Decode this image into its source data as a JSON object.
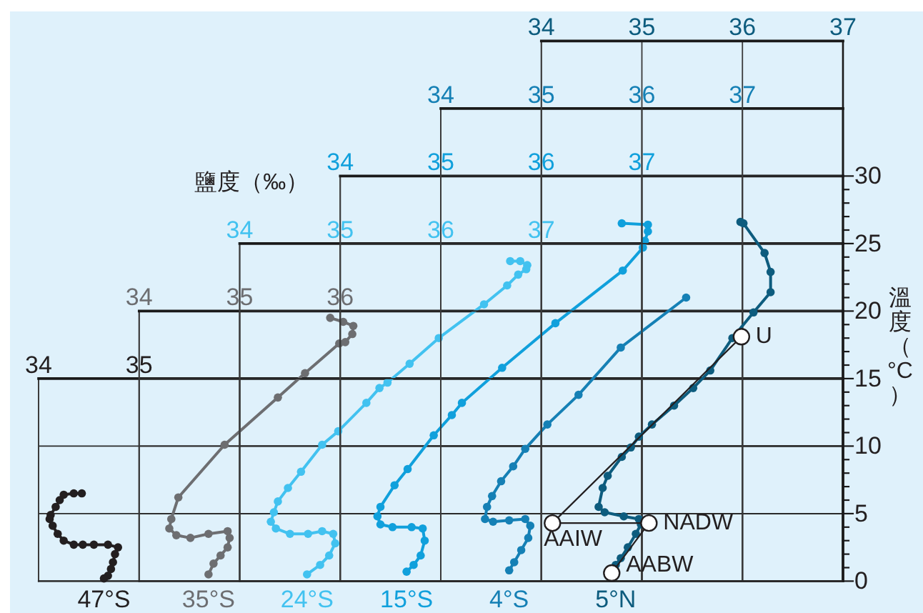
{
  "chart_data": [
    {
      "type": "line",
      "xlim": [
        34,
        42
      ],
      "xticks": [
        34,
        35,
        {
          "value": 36,
          "label": null
        },
        {
          "value": 37,
          "label": null
        },
        {
          "value": 39,
          "label": null
        },
        {
          "value": 40,
          "label": null
        },
        {
          "value": 41,
          "label": null
        }
      ],
      "ylim": [
        0,
        15
      ],
      "yticks": [
        0,
        5,
        10,
        15
      ],
      "tick_labels": "x",
      "grid": true,
      "marker": "circle",
      "series": [
        {
          "name": "47°S",
          "color": "#231f20",
          "x": [
            34.43,
            34.35,
            34.25,
            34.21,
            34.17,
            34.12,
            34.11,
            34.14,
            34.19,
            34.25,
            34.35,
            34.44,
            34.55,
            34.69,
            34.79,
            34.76,
            34.74,
            34.72,
            34.69,
            34.65
          ],
          "values": [
            6.5,
            6.5,
            6.4,
            6.0,
            5.5,
            4.9,
            4.6,
            4.1,
            3.5,
            3.0,
            2.7,
            2.7,
            2.7,
            2.7,
            2.5,
            2.0,
            1.4,
            0.9,
            0.4,
            0.2
          ]
        }
      ]
    },
    {
      "type": "line",
      "xlim": [
        34,
        41
      ],
      "xticks": [
        34,
        35,
        36,
        {
          "value": 38,
          "label": null
        },
        {
          "value": 39,
          "label": null
        },
        {
          "value": 40,
          "label": null
        }
      ],
      "ylim": [
        0,
        20
      ],
      "yticks": [
        0,
        5,
        10,
        15,
        20
      ],
      "tick_labels": "x",
      "grid": true,
      "marker": "circle",
      "series": [
        {
          "name": "35°S",
          "color": "#6d6e71",
          "x": [
            35.9,
            36.03,
            36.13,
            36.12,
            36.05,
            35.99,
            35.65,
            35.38,
            34.85,
            34.39,
            34.32,
            34.3,
            34.37,
            34.51,
            34.69,
            34.88,
            34.9,
            34.88,
            34.81,
            34.74,
            34.69
          ],
          "values": [
            19.5,
            19.2,
            18.9,
            18.3,
            17.7,
            17.6,
            15.4,
            13.6,
            10.1,
            6.2,
            4.6,
            3.9,
            3.4,
            3.2,
            3.5,
            3.7,
            3.2,
            2.5,
            1.9,
            1.3,
            0.5
          ]
        }
      ]
    },
    {
      "type": "line",
      "xlim": [
        34,
        40
      ],
      "xticks": [
        34,
        35,
        36,
        37,
        {
          "value": 38,
          "label": null
        },
        {
          "value": 39,
          "label": null
        }
      ],
      "ylim": [
        0,
        25
      ],
      "yticks": [
        0,
        5,
        10,
        15,
        20,
        25
      ],
      "tick_labels": "x",
      "grid": true,
      "marker": "circle",
      "series": [
        {
          "name": "24°S",
          "color": "#42c2f0",
          "x": [
            36.69,
            36.79,
            36.86,
            36.85,
            36.77,
            36.66,
            36.43,
            35.98,
            35.69,
            35.47,
            35.39,
            35.26,
            34.98,
            34.82,
            34.61,
            34.48,
            34.38,
            34.34,
            34.31,
            34.36,
            34.5,
            34.68,
            34.82,
            34.93,
            34.95,
            34.89,
            34.8,
            34.67
          ],
          "values": [
            23.7,
            23.7,
            23.4,
            23.1,
            22.7,
            21.9,
            20.5,
            18.0,
            16.1,
            14.7,
            14.3,
            13.2,
            11.1,
            10.1,
            8.1,
            6.9,
            5.9,
            5.1,
            4.4,
            3.9,
            3.5,
            3.5,
            3.7,
            3.5,
            2.8,
            1.9,
            1.2,
            0.5
          ]
        }
      ]
    },
    {
      "type": "line",
      "xlabel": "鹽度（‰）",
      "xlim": [
        34,
        39
      ],
      "xticks": [
        34,
        35,
        36,
        37,
        {
          "value": 38,
          "label": null
        }
      ],
      "ylim": [
        0,
        30
      ],
      "yticks": [
        0,
        5,
        10,
        15,
        20,
        25,
        30
      ],
      "tick_labels": "x",
      "grid": true,
      "marker": "circle",
      "series": [
        {
          "name": "15°S",
          "color": "#10a0dc",
          "x": [
            36.8,
            37.06,
            37.06,
            37.03,
            37.01,
            36.81,
            36.14,
            35.61,
            35.21,
            35.11,
            34.93,
            34.67,
            34.54,
            34.4,
            34.37,
            34.4,
            34.52,
            34.71,
            34.82,
            34.84,
            34.8,
            34.73,
            34.66
          ],
          "values": [
            26.5,
            26.4,
            25.9,
            25.2,
            24.7,
            23.0,
            19.1,
            15.8,
            13.2,
            12.3,
            10.8,
            8.3,
            7.1,
            5.5,
            4.8,
            4.2,
            4.0,
            4.0,
            3.9,
            3.0,
            1.9,
            1.2,
            0.7
          ]
        }
      ]
    },
    {
      "type": "line",
      "xlim": [
        34,
        38
      ],
      "xticks": [
        34,
        35,
        36,
        37
      ],
      "ylim": [
        0,
        35
      ],
      "yticks": [
        0,
        5,
        10,
        15,
        20,
        25,
        30
      ],
      "tick_labels": "x",
      "grid": true,
      "marker": "circle",
      "series": [
        {
          "name": "4°S",
          "color": "#1580b5",
          "x": [
            36.44,
            35.79,
            35.37,
            35.06,
            34.84,
            34.72,
            34.6,
            34.51,
            34.46,
            34.44,
            34.52,
            34.68,
            34.84,
            34.89,
            34.87,
            34.8,
            34.73,
            34.68
          ],
          "values": [
            21.0,
            17.3,
            13.8,
            11.6,
            9.8,
            8.5,
            7.4,
            6.3,
            5.5,
            4.6,
            4.4,
            4.5,
            4.6,
            4.1,
            3.2,
            2.3,
            1.4,
            0.8
          ]
        }
      ]
    },
    {
      "type": "line",
      "ylabel": "溫度（°C）",
      "xlim": [
        34,
        37
      ],
      "xticks": [
        34,
        35,
        36,
        37
      ],
      "ylim": [
        0,
        40
      ],
      "yticks": [
        0,
        {
          "value": 1,
          "label": null
        },
        {
          "value": 2,
          "label": null
        },
        {
          "value": 3,
          "label": null
        },
        {
          "value": 4,
          "label": null
        },
        5,
        {
          "value": 6,
          "label": null
        },
        {
          "value": 7,
          "label": null
        },
        {
          "value": 8,
          "label": null
        },
        {
          "value": 9,
          "label": null
        },
        10,
        {
          "value": 11,
          "label": null
        },
        {
          "value": 12,
          "label": null
        },
        {
          "value": 13,
          "label": null
        },
        {
          "value": 14,
          "label": null
        },
        15,
        {
          "value": 16,
          "label": null
        },
        {
          "value": 17,
          "label": null
        },
        {
          "value": 18,
          "label": null
        },
        {
          "value": 19,
          "label": null
        },
        20,
        {
          "value": 21,
          "label": null
        },
        {
          "value": 22,
          "label": null
        },
        {
          "value": 23,
          "label": null
        },
        {
          "value": 24,
          "label": null
        },
        25,
        {
          "value": 26,
          "label": null
        },
        {
          "value": 27,
          "label": null
        },
        {
          "value": 28,
          "label": null
        },
        {
          "value": 29,
          "label": null
        },
        30
      ],
      "grid": "x",
      "marker": "circle",
      "series": [
        {
          "name": "5°N",
          "color": "#0d5c7e",
          "x": [
            35.98,
            36.01,
            36.22,
            36.28,
            36.28,
            36.11,
            35.9,
            35.68,
            35.51,
            35.32,
            35.1,
            34.97,
            34.89,
            34.8,
            34.66,
            34.61,
            34.57,
            34.63,
            34.82,
            34.97,
            34.99,
            34.94,
            34.86,
            34.79,
            34.74
          ],
          "values": [
            26.6,
            26.5,
            24.3,
            22.9,
            21.4,
            19.9,
            18.0,
            15.6,
            14.3,
            13.0,
            11.6,
            10.7,
            9.9,
            9.2,
            7.8,
            6.9,
            5.5,
            5.1,
            4.8,
            4.6,
            4.2,
            3.5,
            2.5,
            1.7,
            1.2
          ]
        },
        {
          "color": "#231f20",
          "x": [
            35.99,
            34.11,
            35.07,
            34.7
          ],
          "values": [
            18.1,
            4.3,
            4.3,
            0.6
          ]
        }
      ],
      "annotations": [
        {
          "text": "U",
          "x": 35.99,
          "y": 18.1
        },
        {
          "text": "AAIW",
          "x": 34.11,
          "y": 4.3
        },
        {
          "text": "NADW",
          "x": 35.07,
          "y": 4.3
        },
        {
          "text": "AABW",
          "x": 34.7,
          "y": 0.6
        }
      ]
    }
  ]
}
